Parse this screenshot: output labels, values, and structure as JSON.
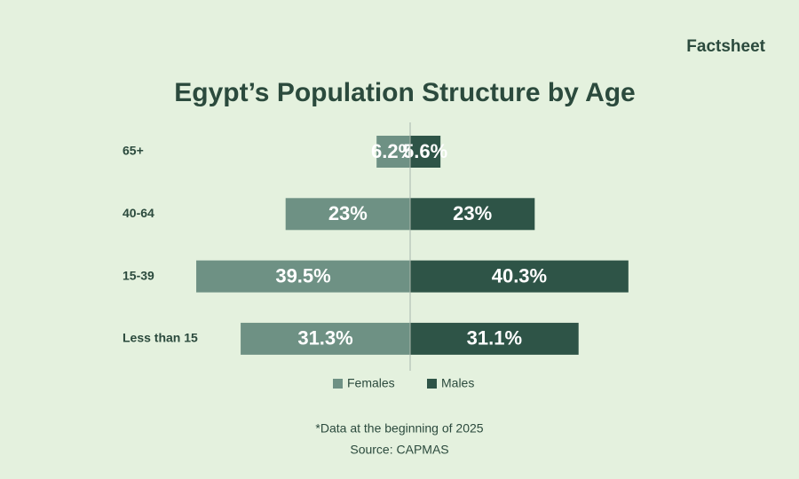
{
  "brand": "Factsheet",
  "chart_data": {
    "type": "pyramid",
    "title": "Egypt’s Population Structure by Age",
    "categories": [
      "65+",
      "40-64",
      "15-39",
      "Less than 15"
    ],
    "series": [
      {
        "name": "Females",
        "color": "#6e9184",
        "values": [
          6.2,
          23,
          39.5,
          31.3
        ],
        "value_labels": [
          "6.2%",
          "23%",
          "39.5%",
          "31.3%"
        ]
      },
      {
        "name": "Males",
        "color": "#2e5447",
        "values": [
          5.6,
          23,
          40.3,
          31.1
        ],
        "value_labels": [
          "5.6%",
          "23%",
          "40.3%",
          "31.1%"
        ]
      }
    ],
    "notes": [
      "*Data at the beginning of 2025",
      "Source: CAPMAS"
    ]
  }
}
